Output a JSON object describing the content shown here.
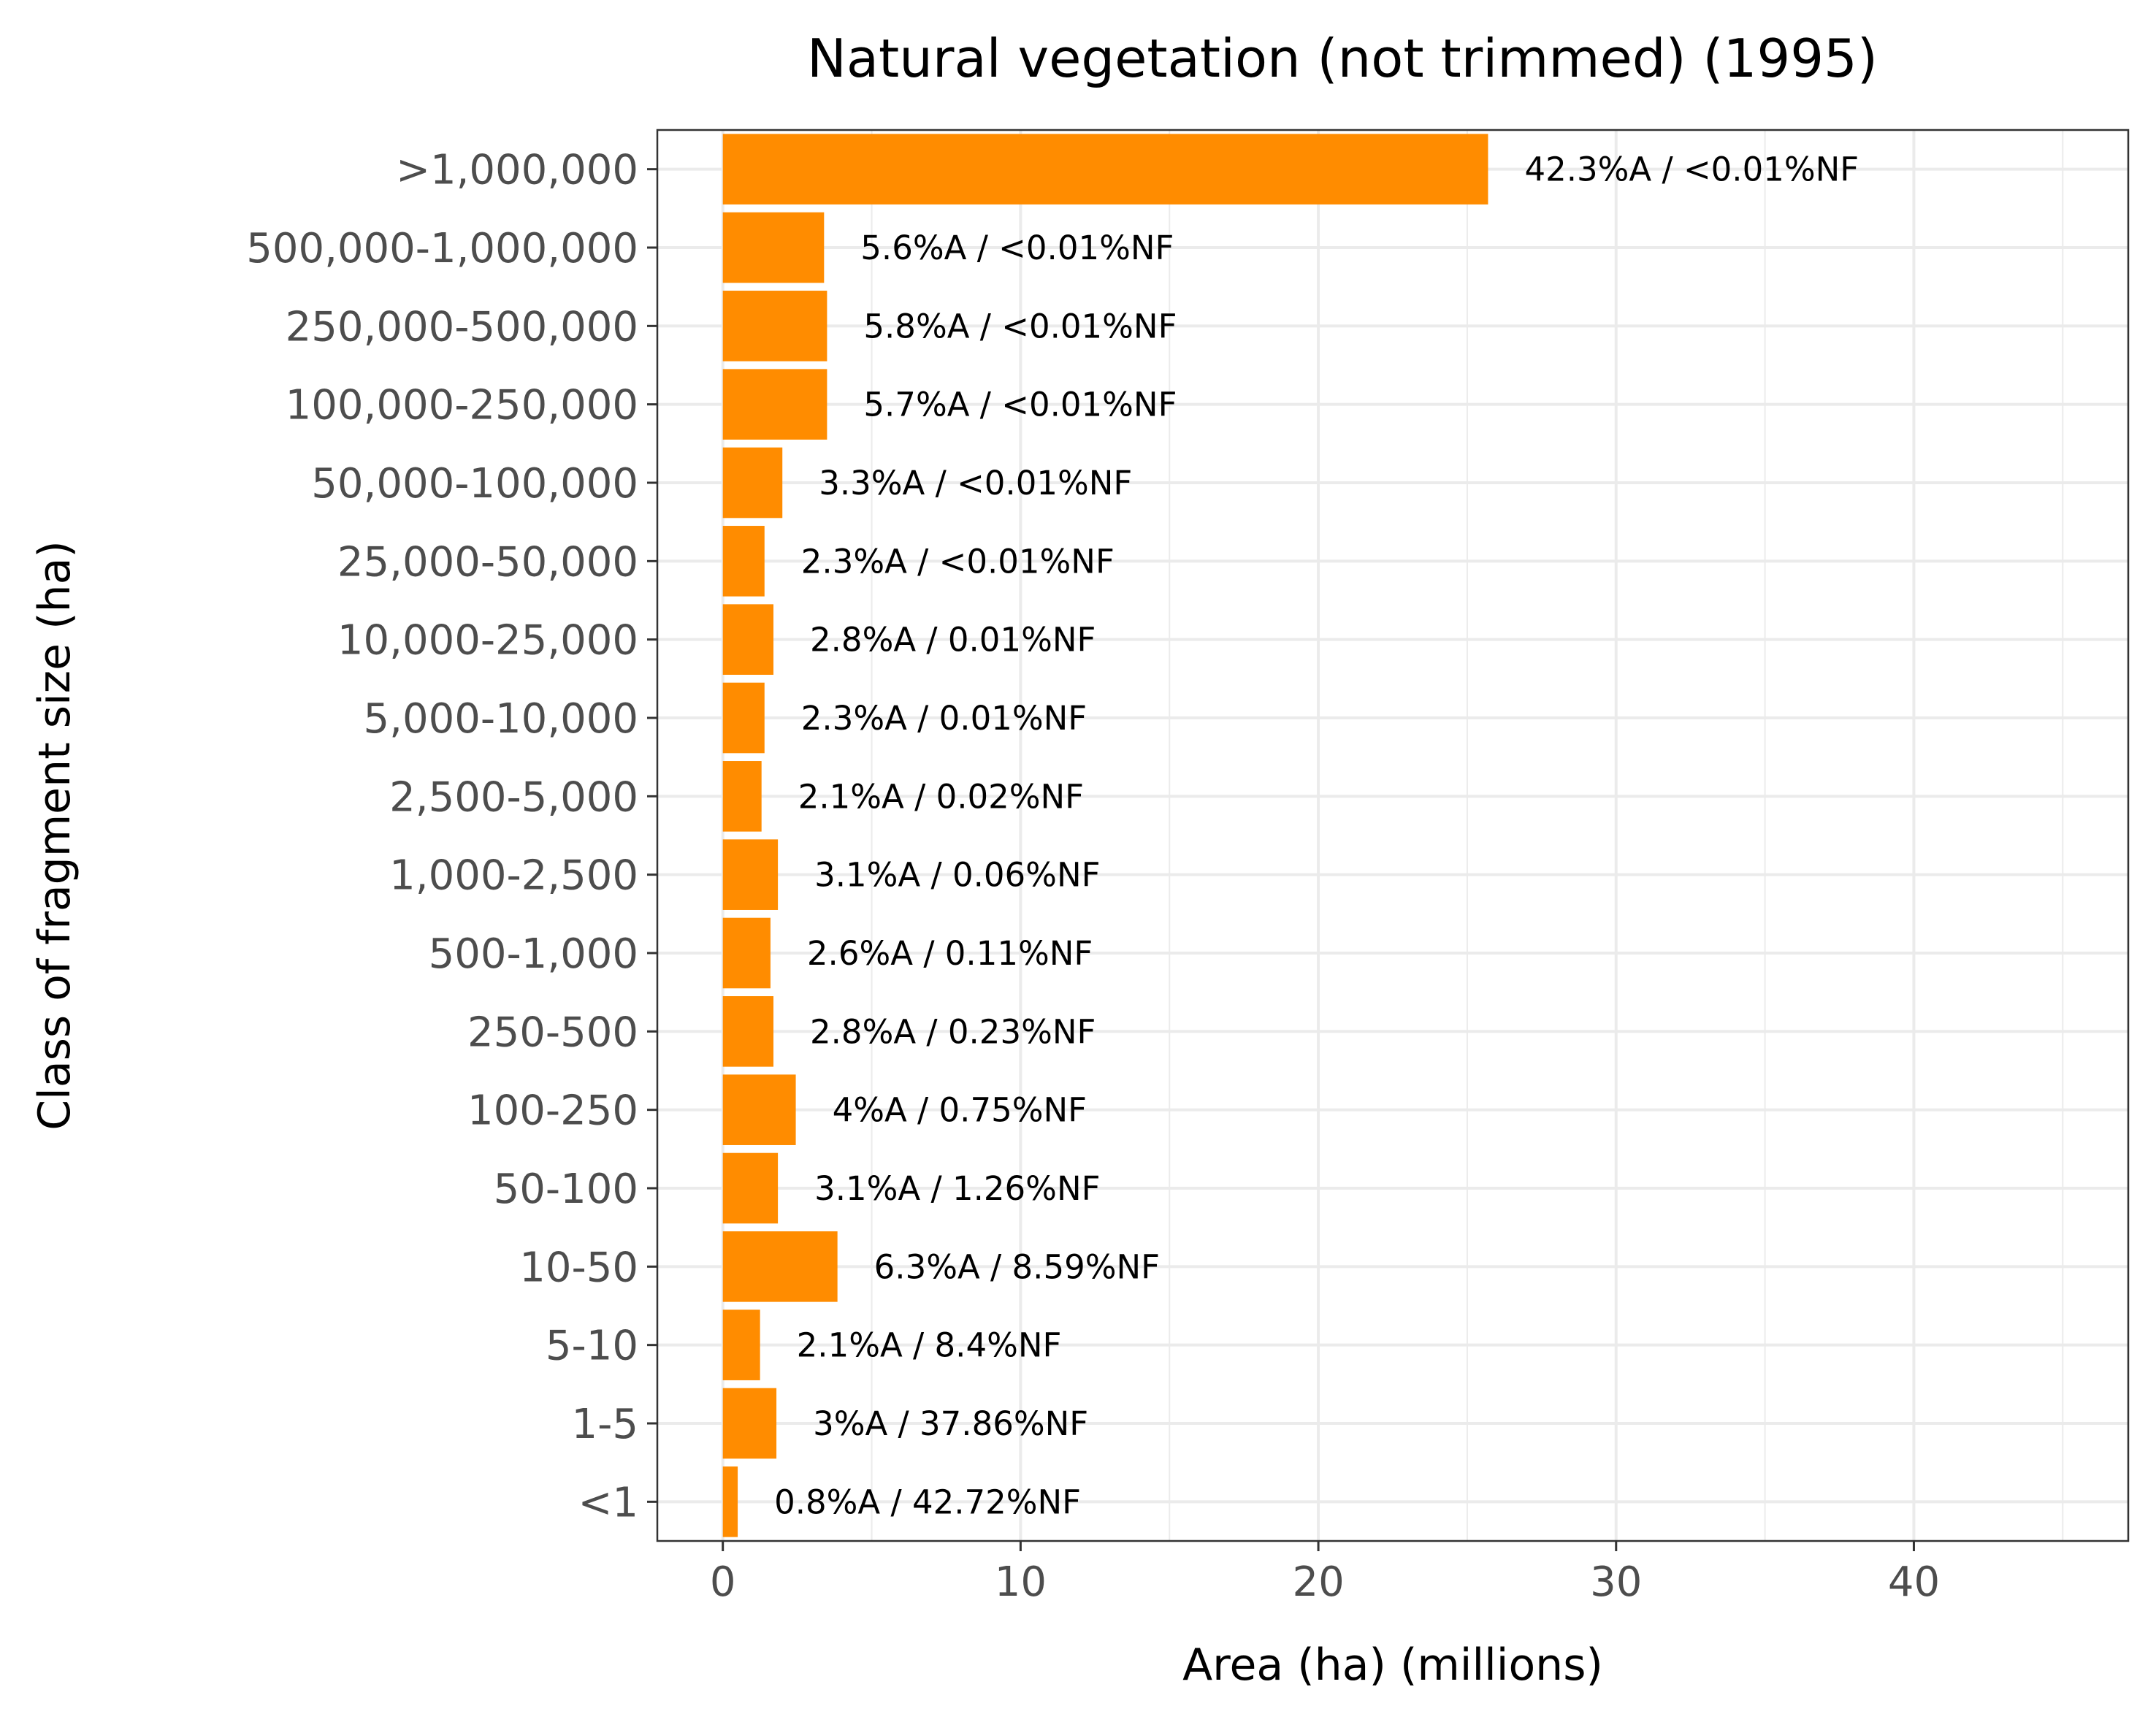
{
  "chart_data": {
    "type": "bar",
    "orientation": "horizontal",
    "title": "Natural vegetation (not trimmed) (1995)",
    "xlabel": "Area (ha) (millions)",
    "ylabel": "Class of fragment size (ha)",
    "xlim": [
      -2.2,
      47.2
    ],
    "xticks": [
      0,
      10,
      20,
      30,
      40
    ],
    "xtick_labels": [
      "0",
      "10",
      "20",
      "30",
      "40"
    ],
    "grid": true,
    "bar_color": "#ff8c00",
    "categories": [
      ">1,000,000",
      "500,000-1,000,000",
      "250,000-500,000",
      "100,000-250,000",
      "50,000-100,000",
      "25,000-50,000",
      "10,000-25,000",
      "5,000-10,000",
      "2,500-5,000",
      "1,000-2,500",
      "500-1,000",
      "250-500",
      "100-250",
      "50-100",
      "10-50",
      "5-10",
      "1-5",
      "<1"
    ],
    "values": [
      25.7,
      3.4,
      3.5,
      3.5,
      2.0,
      1.4,
      1.7,
      1.4,
      1.3,
      1.85,
      1.6,
      1.7,
      2.45,
      1.85,
      3.85,
      1.25,
      1.8,
      0.5
    ],
    "data_labels": [
      "42.3%A / <0.01%NF",
      "5.6%A / <0.01%NF",
      "5.8%A / <0.01%NF",
      "5.7%A / <0.01%NF",
      "3.3%A / <0.01%NF",
      "2.3%A / <0.01%NF",
      "2.8%A / 0.01%NF",
      "2.3%A / 0.01%NF",
      "2.1%A / 0.02%NF",
      "3.1%A / 0.06%NF",
      "2.6%A / 0.11%NF",
      "2.8%A / 0.23%NF",
      "4%A / 0.75%NF",
      "3.1%A / 1.26%NF",
      "6.3%A / 8.59%NF",
      "2.1%A / 8.4%NF",
      "3%A / 37.86%NF",
      "0.8%A / 42.72%NF"
    ]
  }
}
